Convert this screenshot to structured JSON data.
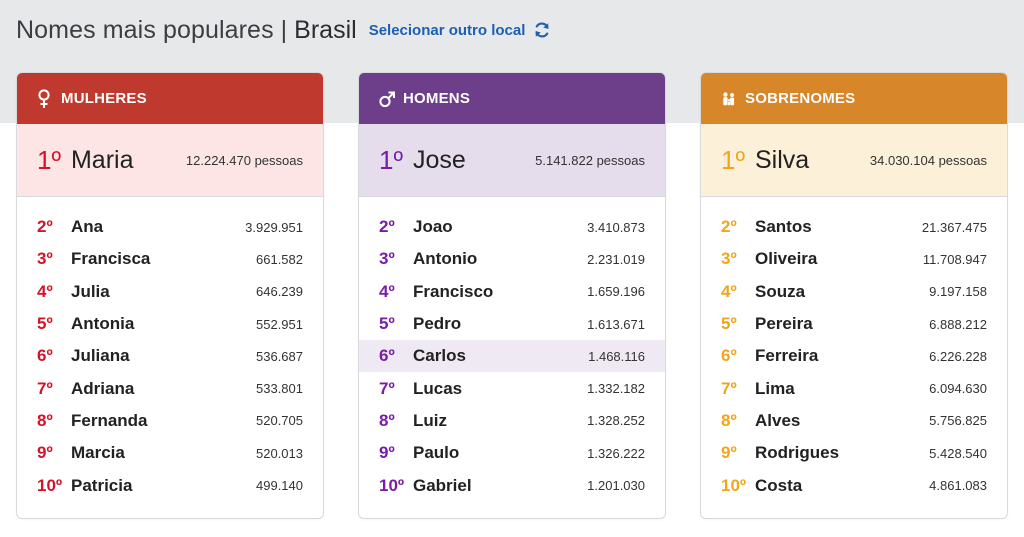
{
  "header": {
    "title": "Nomes mais populares",
    "separator": "|",
    "location": "Brasil",
    "select_label": "Selecionar outro local"
  },
  "colors": {
    "women": "#c0392f",
    "men": "#6d3f8a",
    "surnames": "#d8862a",
    "link": "#1d5fb0"
  },
  "women": {
    "title": "MULHERES",
    "icon": "female-icon",
    "first": {
      "rank": "1º",
      "name": "Maria",
      "count": "12.224.470 pessoas"
    },
    "rows": [
      {
        "rank": "2º",
        "name": "Ana",
        "count": "3.929.951"
      },
      {
        "rank": "3º",
        "name": "Francisca",
        "count": "661.582"
      },
      {
        "rank": "4º",
        "name": "Julia",
        "count": "646.239"
      },
      {
        "rank": "5º",
        "name": "Antonia",
        "count": "552.951"
      },
      {
        "rank": "6º",
        "name": "Juliana",
        "count": "536.687"
      },
      {
        "rank": "7º",
        "name": "Adriana",
        "count": "533.801"
      },
      {
        "rank": "8º",
        "name": "Fernanda",
        "count": "520.705"
      },
      {
        "rank": "9º",
        "name": "Marcia",
        "count": "520.013"
      },
      {
        "rank": "10º",
        "name": "Patricia",
        "count": "499.140"
      }
    ]
  },
  "men": {
    "title": "HOMENS",
    "icon": "male-icon",
    "first": {
      "rank": "1º",
      "name": "Jose",
      "count": "5.141.822 pessoas"
    },
    "rows": [
      {
        "rank": "2º",
        "name": "Joao",
        "count": "3.410.873"
      },
      {
        "rank": "3º",
        "name": "Antonio",
        "count": "2.231.019"
      },
      {
        "rank": "4º",
        "name": "Francisco",
        "count": "1.659.196"
      },
      {
        "rank": "5º",
        "name": "Pedro",
        "count": "1.613.671"
      },
      {
        "rank": "6º",
        "name": "Carlos",
        "count": "1.468.116"
      },
      {
        "rank": "7º",
        "name": "Lucas",
        "count": "1.332.182"
      },
      {
        "rank": "8º",
        "name": "Luiz",
        "count": "1.328.252"
      },
      {
        "rank": "9º",
        "name": "Paulo",
        "count": "1.326.222"
      },
      {
        "rank": "10º",
        "name": "Gabriel",
        "count": "1.201.030"
      }
    ]
  },
  "surnames": {
    "title": "SOBRENOMES",
    "icon": "family-icon",
    "first": {
      "rank": "1º",
      "name": "Silva",
      "count": "34.030.104 pessoas"
    },
    "rows": [
      {
        "rank": "2º",
        "name": "Santos",
        "count": "21.367.475"
      },
      {
        "rank": "3º",
        "name": "Oliveira",
        "count": "11.708.947"
      },
      {
        "rank": "4º",
        "name": "Souza",
        "count": "9.197.158"
      },
      {
        "rank": "5º",
        "name": "Pereira",
        "count": "6.888.212"
      },
      {
        "rank": "6º",
        "name": "Ferreira",
        "count": "6.226.228"
      },
      {
        "rank": "7º",
        "name": "Lima",
        "count": "6.094.630"
      },
      {
        "rank": "8º",
        "name": "Alves",
        "count": "5.756.825"
      },
      {
        "rank": "9º",
        "name": "Rodrigues",
        "count": "5.428.540"
      },
      {
        "rank": "10º",
        "name": "Costa",
        "count": "4.861.083"
      }
    ]
  }
}
